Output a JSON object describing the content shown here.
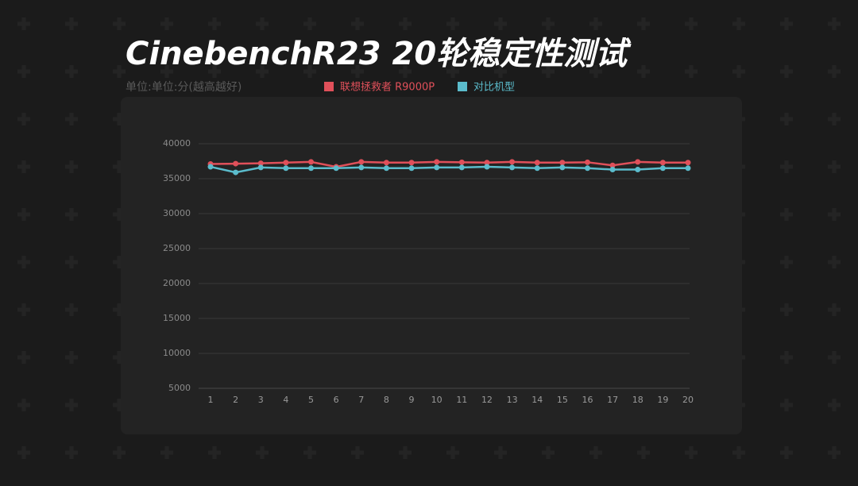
{
  "chart_data": {
    "type": "line",
    "title": "CinebenchR23 20轮稳定性测试",
    "subtitle": "单位:单位:分(越高越好)",
    "categories": [
      "1",
      "2",
      "3",
      "4",
      "5",
      "6",
      "7",
      "8",
      "9",
      "10",
      "11",
      "12",
      "13",
      "14",
      "15",
      "16",
      "17",
      "18",
      "19",
      "20"
    ],
    "series": [
      {
        "name": "联想拯救者 R9000P",
        "color": "#e0505a",
        "values": [
          37100,
          37150,
          37200,
          37300,
          37400,
          36700,
          37400,
          37300,
          37300,
          37400,
          37350,
          37300,
          37400,
          37300,
          37300,
          37350,
          36900,
          37400,
          37300,
          37300
        ]
      },
      {
        "name": "对比机型",
        "color": "#5bbccc",
        "values": [
          36700,
          35900,
          36600,
          36500,
          36500,
          36500,
          36600,
          36500,
          36500,
          36600,
          36600,
          36700,
          36600,
          36500,
          36600,
          36500,
          36300,
          36300,
          36500,
          36500
        ]
      }
    ],
    "ylim": [
      5000,
      40000
    ],
    "yticks": [
      5000,
      10000,
      15000,
      20000,
      25000,
      30000,
      35000,
      40000
    ],
    "grid": true
  }
}
